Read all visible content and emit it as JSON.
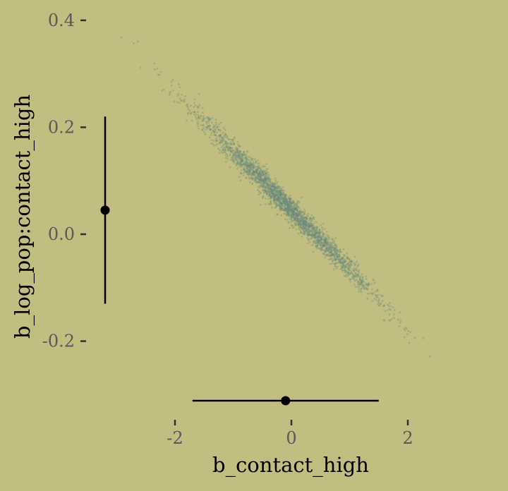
{
  "chart_data": {
    "type": "scatter",
    "title": "",
    "xlabel": "b_contact_high",
    "ylabel": "b_log_pop:contact_high",
    "xlim": [
      -2.2,
      3.2
    ],
    "ylim": [
      -0.33,
      0.4
    ],
    "x_ticks": [
      {
        "value": -2,
        "label": "-2"
      },
      {
        "value": 0,
        "label": "0"
      },
      {
        "value": 2,
        "label": "2"
      }
    ],
    "y_ticks": [
      {
        "value": 0.4,
        "label": "0.4"
      },
      {
        "value": 0.2,
        "label": "0.2"
      },
      {
        "value": 0.0,
        "label": "0.0"
      },
      {
        "value": -0.2,
        "label": "-0.2"
      }
    ],
    "grid": false,
    "series": [
      {
        "description_points": "posterior draws, strong negative correlation",
        "trend": {
          "x": [
            -3.0,
            3.1
          ],
          "y": [
            0.39,
            -0.28
          ]
        },
        "color": "#6b8a7a"
      }
    ],
    "x_marginal_interval": {
      "lower": -1.7,
      "mean": -0.1,
      "upper": 1.5
    },
    "y_marginal_interval": {
      "lower": -0.13,
      "mean": 0.045,
      "upper": 0.22
    },
    "colors": {
      "background": "#c2bd80",
      "points": "#6b8a7a",
      "interval": "#000000"
    }
  }
}
